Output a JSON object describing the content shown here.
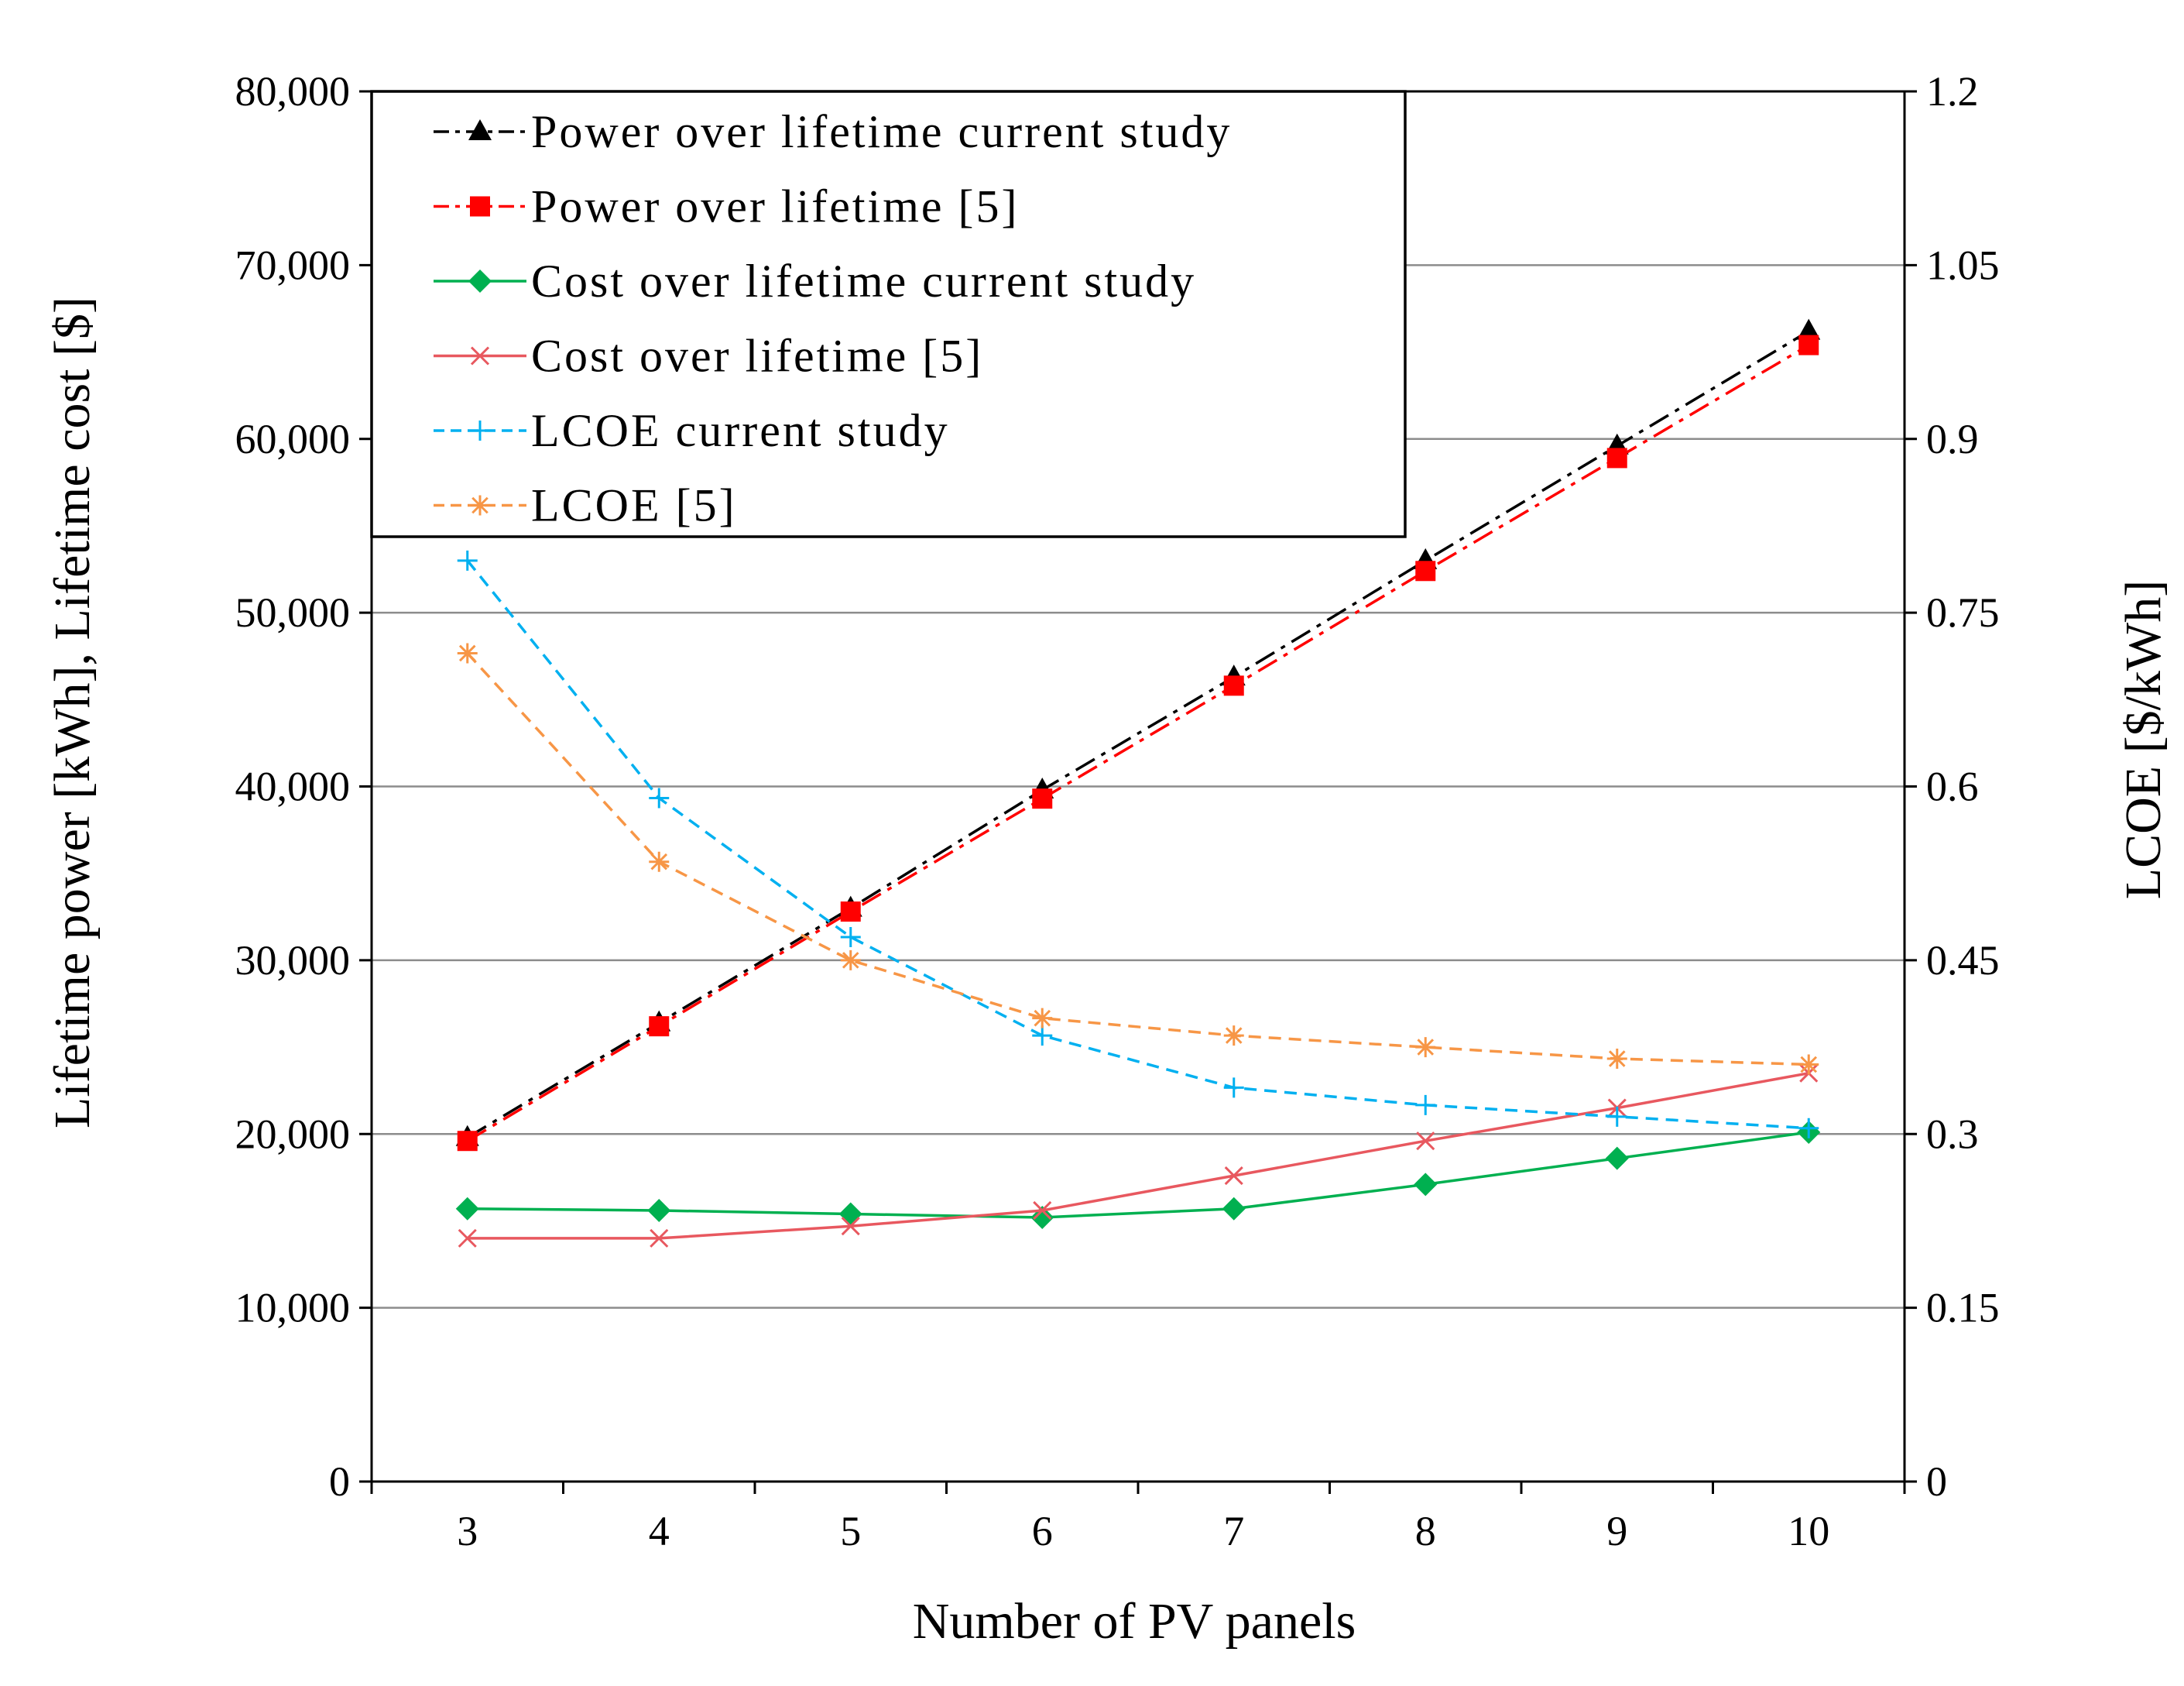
{
  "chart_data": {
    "type": "line",
    "title": "",
    "xlabel": "Number of PV panels",
    "ylabel": "Lifetime power [kWh], Lifetime cost [$]",
    "y2label": "LCOE [$/kWh]",
    "x": [
      3,
      4,
      5,
      6,
      7,
      8,
      9,
      10
    ],
    "ylim": [
      0,
      80000
    ],
    "y2lim": [
      0,
      1.2
    ],
    "yticks": [
      "0",
      "10,000",
      "20,000",
      "30,000",
      "40,000",
      "50,000",
      "60,000",
      "70,000",
      "80,000"
    ],
    "y2ticks": [
      "0",
      "0.15",
      "0.3",
      "0.45",
      "0.6",
      "0.75",
      "0.9",
      "1.05",
      "1.2"
    ],
    "grid": true,
    "legend_position": "top-left",
    "series": [
      {
        "name": "Power over lifetime current study",
        "axis": "left",
        "color": "#000000",
        "dash": "dashdot",
        "marker": "triangle",
        "values": [
          19800,
          26400,
          33000,
          39800,
          46300,
          53000,
          59600,
          66200
        ]
      },
      {
        "name": "Power over lifetime [5]",
        "axis": "left",
        "color": "#ff0000",
        "dash": "dashdot",
        "marker": "square",
        "values": [
          19600,
          26200,
          32800,
          39300,
          45800,
          52400,
          58900,
          65400
        ]
      },
      {
        "name": "Cost over lifetime current study",
        "axis": "left",
        "color": "#00b050",
        "dash": "solid",
        "marker": "diamond",
        "values": [
          15700,
          15600,
          15400,
          15200,
          15700,
          17100,
          18600,
          20100
        ]
      },
      {
        "name": "Cost over lifetime [5]",
        "axis": "left",
        "color": "#e8585f",
        "dash": "solid",
        "marker": "x",
        "values": [
          14000,
          14000,
          14700,
          15600,
          17600,
          19600,
          21500,
          23500
        ]
      },
      {
        "name": "LCOE current study",
        "axis": "right",
        "color": "#00b0f0",
        "dash": "dashed",
        "marker": "plus",
        "values": [
          0.795,
          0.59,
          0.47,
          0.385,
          0.34,
          0.325,
          0.315,
          0.305
        ]
      },
      {
        "name": "LCOE [5]",
        "axis": "right",
        "color": "#f79646",
        "dash": "dashed",
        "marker": "asterisk",
        "values": [
          0.715,
          0.535,
          0.45,
          0.4,
          0.385,
          0.375,
          0.365,
          0.36
        ]
      }
    ]
  }
}
